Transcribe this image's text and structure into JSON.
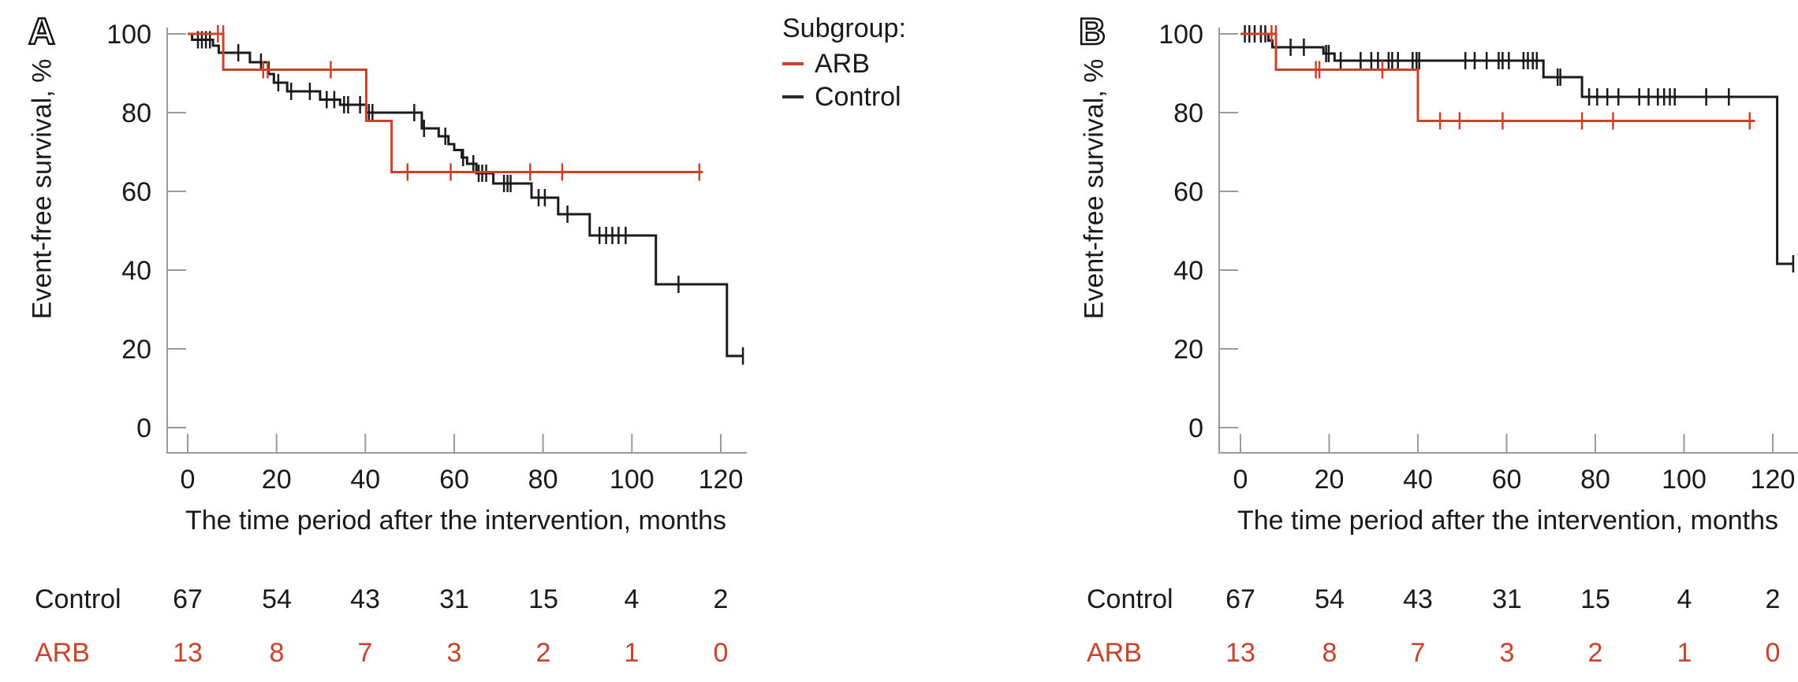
{
  "legend": {
    "title": "Subgroup:",
    "items": [
      {
        "label": "ARB",
        "color": "#c8432b"
      },
      {
        "label": "Control",
        "color": "#2a2a2a"
      }
    ]
  },
  "colors": {
    "arb": "#c8432b",
    "control": "#1a1a1a",
    "axis": "#9a9a9a"
  },
  "chart_data": [
    {
      "type": "line",
      "panel_label": "A",
      "title": "",
      "xlabel": "The time period after the intervention, months",
      "ylabel": "Event-free survival, %",
      "xlim": [
        0,
        125
      ],
      "ylim": [
        0,
        100
      ],
      "x_ticks": [
        0,
        20,
        40,
        60,
        80,
        100,
        120
      ],
      "y_ticks": [
        0,
        20,
        40,
        60,
        80,
        100
      ],
      "grid": false,
      "legend_position": "top-right-outside",
      "series": [
        {
          "name": "Control",
          "color": "#1a1a1a",
          "step": true,
          "points": [
            [
              0,
              100
            ],
            [
              1,
              98.5
            ],
            [
              5.7,
              97
            ],
            [
              7,
              95.2
            ],
            [
              14,
              92.8
            ],
            [
              18.2,
              89.8
            ],
            [
              19.4,
              87.6
            ],
            [
              22.4,
              85.4
            ],
            [
              29.8,
              83.3
            ],
            [
              34.3,
              82
            ],
            [
              40.2,
              80
            ],
            [
              52.7,
              76
            ],
            [
              56.5,
              74
            ],
            [
              58.7,
              72
            ],
            [
              60,
              70.5
            ],
            [
              61.7,
              68.6
            ],
            [
              62.9,
              67
            ],
            [
              65,
              64.6
            ],
            [
              68.8,
              62
            ],
            [
              77.4,
              58.4
            ],
            [
              83.4,
              54.2
            ],
            [
              90.5,
              48.8
            ],
            [
              105.4,
              36.4
            ],
            [
              121.4,
              18.2
            ]
          ],
          "end_t": 125,
          "censors": [
            [
              2.3,
              98.5
            ],
            [
              3.2,
              98.5
            ],
            [
              4.1,
              98.5
            ],
            [
              5,
              98.5
            ],
            [
              11.4,
              95.2
            ],
            [
              16.5,
              92.8
            ],
            [
              20.4,
              87.6
            ],
            [
              23.3,
              85.4
            ],
            [
              27.5,
              85.4
            ],
            [
              31.3,
              83.3
            ],
            [
              33,
              83.3
            ],
            [
              35.2,
              82
            ],
            [
              36.1,
              82
            ],
            [
              38.8,
              82
            ],
            [
              40.8,
              80
            ],
            [
              41.6,
              80
            ],
            [
              51,
              80
            ],
            [
              53.2,
              76
            ],
            [
              58,
              74
            ],
            [
              62,
              68.6
            ],
            [
              64.3,
              67
            ],
            [
              65.5,
              64.6
            ],
            [
              66.3,
              64.6
            ],
            [
              67.2,
              64.6
            ],
            [
              71.2,
              62
            ],
            [
              72,
              62
            ],
            [
              72.7,
              62
            ],
            [
              79,
              58.4
            ],
            [
              80.4,
              58.4
            ],
            [
              85.5,
              54.2
            ],
            [
              92.7,
              48.8
            ],
            [
              94.2,
              48.8
            ],
            [
              95.6,
              48.8
            ],
            [
              97,
              48.8
            ],
            [
              98.6,
              48.8
            ],
            [
              110.5,
              36.4
            ],
            [
              125,
              18.2
            ]
          ]
        },
        {
          "name": "ARB",
          "color": "#c8432b",
          "step": true,
          "points": [
            [
              0,
              100
            ],
            [
              8,
              90.9
            ],
            [
              40.2,
              77.9
            ],
            [
              45.9,
              64.9
            ]
          ],
          "end_t": 116,
          "censors": [
            [
              6.8,
              100
            ],
            [
              8,
              100
            ],
            [
              17,
              90.9
            ],
            [
              18,
              90.9
            ],
            [
              32.2,
              90.9
            ],
            [
              49.5,
              64.9
            ],
            [
              59.2,
              64.9
            ],
            [
              77.1,
              64.9
            ],
            [
              84.3,
              64.9
            ],
            [
              115.2,
              64.9
            ]
          ]
        }
      ],
      "risk_table": {
        "times": [
          0,
          20,
          40,
          60,
          80,
          100,
          120
        ],
        "rows": [
          {
            "label": "Control",
            "color": "#1a1a1a",
            "values": [
              67,
              54,
              43,
              31,
              15,
              4,
              2
            ]
          },
          {
            "label": "ARB",
            "color": "#c8432b",
            "values": [
              13,
              8,
              7,
              3,
              2,
              1,
              0
            ]
          }
        ]
      }
    },
    {
      "type": "line",
      "panel_label": "B",
      "title": "",
      "xlabel": "The time period after the intervention, months",
      "ylabel": "Event-free survival, %",
      "xlim": [
        0,
        125
      ],
      "ylim": [
        0,
        100
      ],
      "x_ticks": [
        0,
        20,
        40,
        60,
        80,
        100,
        120
      ],
      "y_ticks": [
        0,
        20,
        40,
        60,
        80,
        100
      ],
      "grid": false,
      "legend_position": "none",
      "series": [
        {
          "name": "Control",
          "color": "#1a1a1a",
          "step": true,
          "points": [
            [
              0,
              100
            ],
            [
              6.3,
              98.3
            ],
            [
              7.2,
              96.6
            ],
            [
              18.7,
              95
            ],
            [
              21.2,
              93.2
            ],
            [
              68.3,
              89
            ],
            [
              77,
              84
            ],
            [
              121,
              41.6
            ]
          ],
          "end_t": 124.6,
          "censors": [
            [
              1,
              100
            ],
            [
              2,
              100
            ],
            [
              3.2,
              100
            ],
            [
              4.6,
              100
            ],
            [
              5.6,
              100
            ],
            [
              11.3,
              96.6
            ],
            [
              14.3,
              96.6
            ],
            [
              19.3,
              95
            ],
            [
              19.9,
              95
            ],
            [
              22.6,
              93.2
            ],
            [
              27.1,
              93.2
            ],
            [
              29.5,
              93.2
            ],
            [
              31,
              93.2
            ],
            [
              33.4,
              93.2
            ],
            [
              34.2,
              93.2
            ],
            [
              35.5,
              93.2
            ],
            [
              38.8,
              93.2
            ],
            [
              39.7,
              93.2
            ],
            [
              40.3,
              93.2
            ],
            [
              50.7,
              93.2
            ],
            [
              52.8,
              93.2
            ],
            [
              55.5,
              93.2
            ],
            [
              58.2,
              93.2
            ],
            [
              59.1,
              93.2
            ],
            [
              60.5,
              93.2
            ],
            [
              63.8,
              93.2
            ],
            [
              64.8,
              93.2
            ],
            [
              65.9,
              93.2
            ],
            [
              66.8,
              93.2
            ],
            [
              71.5,
              89
            ],
            [
              72.1,
              89
            ],
            [
              78.6,
              84
            ],
            [
              80.4,
              84
            ],
            [
              82.7,
              84
            ],
            [
              85.2,
              84
            ],
            [
              89.9,
              84
            ],
            [
              92,
              84
            ],
            [
              94.1,
              84
            ],
            [
              95.5,
              84
            ],
            [
              96.8,
              84
            ],
            [
              97.9,
              84
            ],
            [
              105,
              84
            ],
            [
              110.1,
              84
            ],
            [
              124.6,
              41.6
            ]
          ]
        },
        {
          "name": "ARB",
          "color": "#c8432b",
          "step": true,
          "points": [
            [
              0,
              100
            ],
            [
              8,
              90.9
            ],
            [
              40,
              77.9
            ]
          ],
          "end_t": 116,
          "censors": [
            [
              7,
              100
            ],
            [
              8,
              100
            ],
            [
              17,
              90.9
            ],
            [
              17.8,
              90.9
            ],
            [
              32,
              90.9
            ],
            [
              45,
              77.9
            ],
            [
              49.4,
              77.9
            ],
            [
              59.1,
              77.9
            ],
            [
              77,
              77.9
            ],
            [
              84,
              77.9
            ],
            [
              114.8,
              77.9
            ]
          ]
        }
      ],
      "risk_table": {
        "times": [
          0,
          20,
          40,
          60,
          80,
          100,
          120
        ],
        "rows": [
          {
            "label": "Control",
            "color": "#1a1a1a",
            "values": [
              67,
              54,
              43,
              31,
              15,
              4,
              2
            ]
          },
          {
            "label": "ARB",
            "color": "#c8432b",
            "values": [
              13,
              8,
              7,
              3,
              2,
              1,
              0
            ]
          }
        ]
      }
    }
  ]
}
